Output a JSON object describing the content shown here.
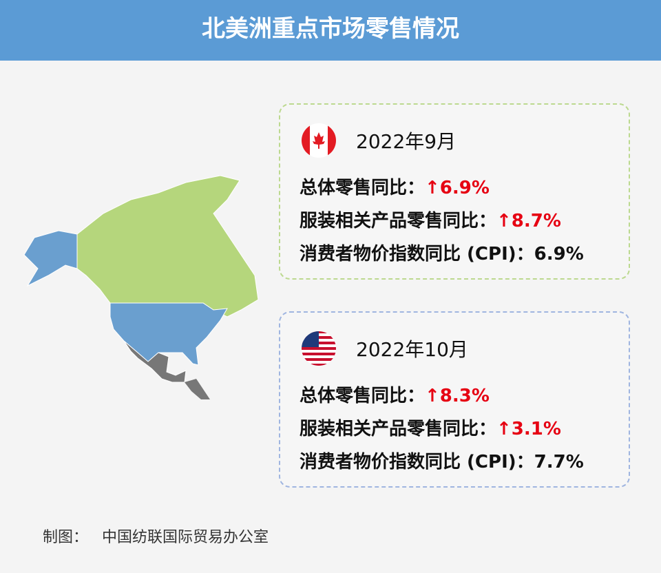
{
  "header": {
    "title": "北美洲重点市场零售情况"
  },
  "cards": [
    {
      "date": "2022年9月",
      "rows": [
        {
          "label": "总体零售同比：",
          "value": "↑6.9%"
        },
        {
          "label": "服装相关产品零售同比：",
          "value": "↑8.7%"
        },
        {
          "label": "消费者物价指数同比 (CPI)：",
          "value": "6.9%"
        }
      ]
    },
    {
      "date": "2022年10月",
      "rows": [
        {
          "label": "总体零售同比：",
          "value": "↑8.3%"
        },
        {
          "label": "服装相关产品零售同比：",
          "value": "↑3.1%"
        },
        {
          "label": "消费者物价指数同比 (CPI)：",
          "value": "7.7%"
        }
      ]
    }
  ],
  "footer": {
    "label": "制图：",
    "source": "中国纺联国际贸易办公室"
  }
}
